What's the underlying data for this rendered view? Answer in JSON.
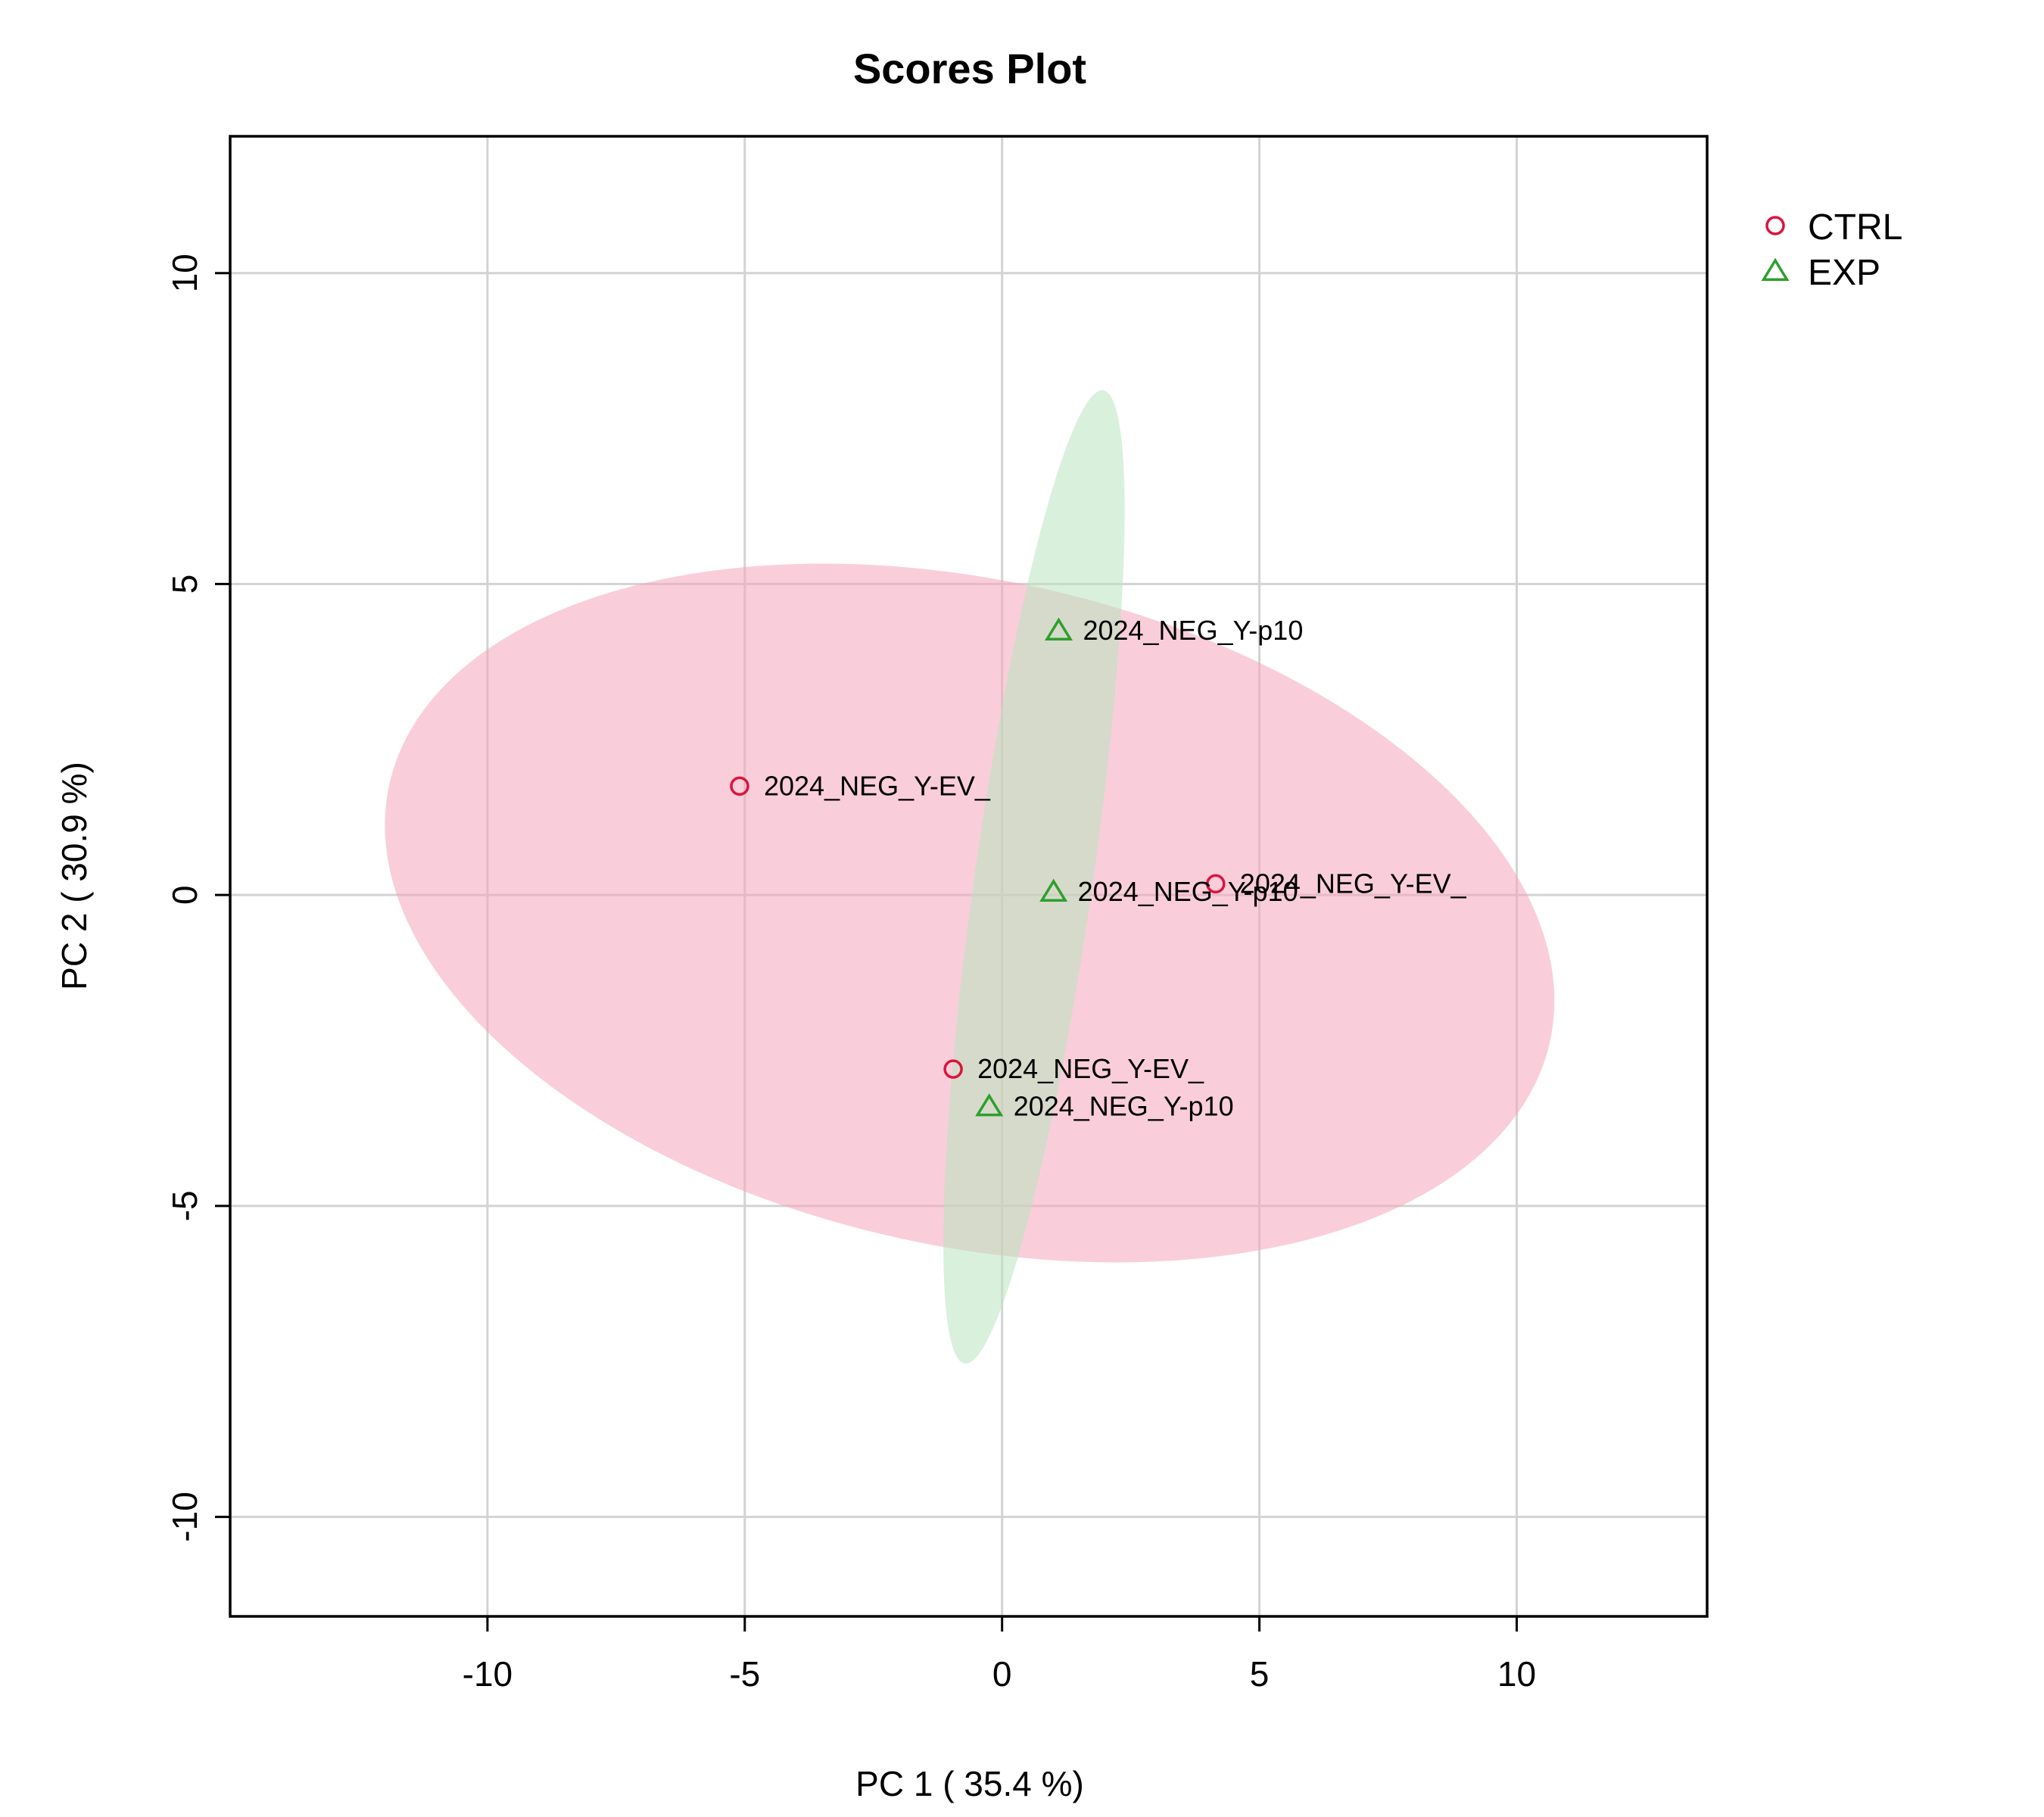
{
  "chart_data": {
    "type": "scatter",
    "title": "Scores Plot",
    "xlabel": "PC 1 ( 35.4 %)",
    "ylabel": "PC 2 ( 30.9 %)",
    "xlim": [
      -15,
      13.7
    ],
    "ylim": [
      -11.6,
      12.2
    ],
    "xticks": [
      -10,
      -5,
      0,
      5,
      10
    ],
    "yticks": [
      -10,
      -5,
      0,
      5,
      10
    ],
    "grid": true,
    "legend_position": "right",
    "series": [
      {
        "name": "CTRL",
        "marker": "circle",
        "color": "#dc143c",
        "ellipse_color": "#f4a6bb",
        "points": [
          {
            "x": -5.1,
            "y": 1.75,
            "label": "2024_NEG_Y-EV_"
          },
          {
            "x": 4.15,
            "y": 0.18,
            "label": "2024_NEG_Y-EV_"
          },
          {
            "x": -0.95,
            "y": -2.8,
            "label": "2024_NEG_Y-EV_"
          }
        ],
        "ellipse": {
          "cx": -0.63,
          "cy": -0.29,
          "rx": 11.55,
          "ry": 5.35,
          "angle_deg": -12.5
        }
      },
      {
        "name": "EXP",
        "marker": "triangle",
        "color": "#2ca02c",
        "ellipse_color": "#b9e3bf",
        "points": [
          {
            "x": 1.1,
            "y": 4.25,
            "label": "2024_NEG_Y-p10"
          },
          {
            "x": 1.0,
            "y": 0.05,
            "label": "2024_NEG_Y-p10"
          },
          {
            "x": -0.25,
            "y": -3.4,
            "label": "2024_NEG_Y-p10"
          }
        ],
        "ellipse": {
          "cx": 0.62,
          "cy": 0.29,
          "rx": 9.55,
          "ry": 0.95,
          "angle_deg": 81.9
        }
      }
    ]
  }
}
